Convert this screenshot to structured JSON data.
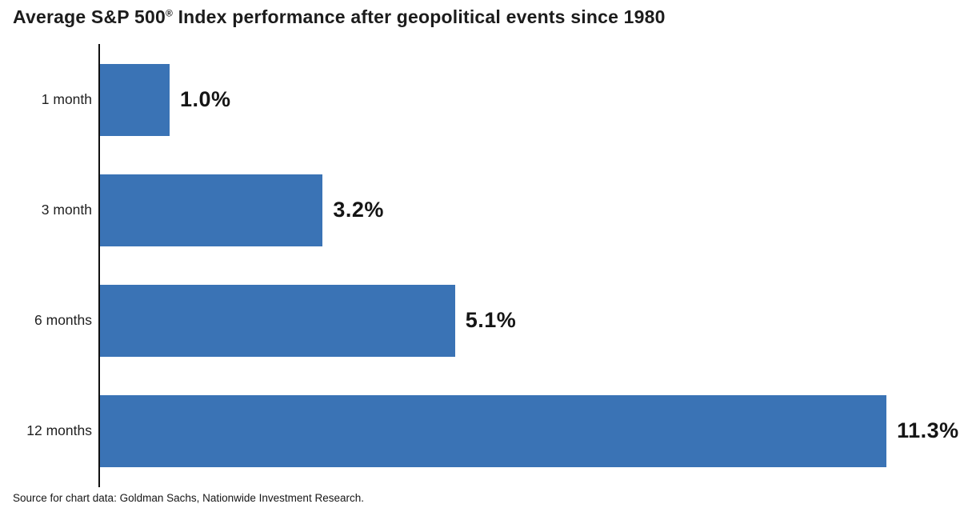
{
  "chart_data": {
    "type": "bar",
    "orientation": "horizontal",
    "title": "Average S&P 500® Index performance after geopolitical events since 1980",
    "categories": [
      "1 month",
      "3 month",
      "6 months",
      "12 months"
    ],
    "values": [
      1.0,
      3.2,
      5.1,
      11.3
    ],
    "value_labels": [
      "1.0%",
      "3.2%",
      "5.1%",
      "11.3%"
    ],
    "xlabel": "",
    "ylabel": "",
    "xlim": [
      0,
      12.3
    ],
    "grid": false,
    "legend": "none",
    "bar_color": "#3A73B5",
    "axis_color": "#111111",
    "source": "Source for chart data: Goldman Sachs, Nationwide Investment Research."
  },
  "title_parts": {
    "before": "Average S&P 500",
    "mark": "®",
    "after": " Index performance after geopolitical events since 1980"
  },
  "source_text": "Source for chart data: Goldman Sachs, Nationwide Investment Research."
}
